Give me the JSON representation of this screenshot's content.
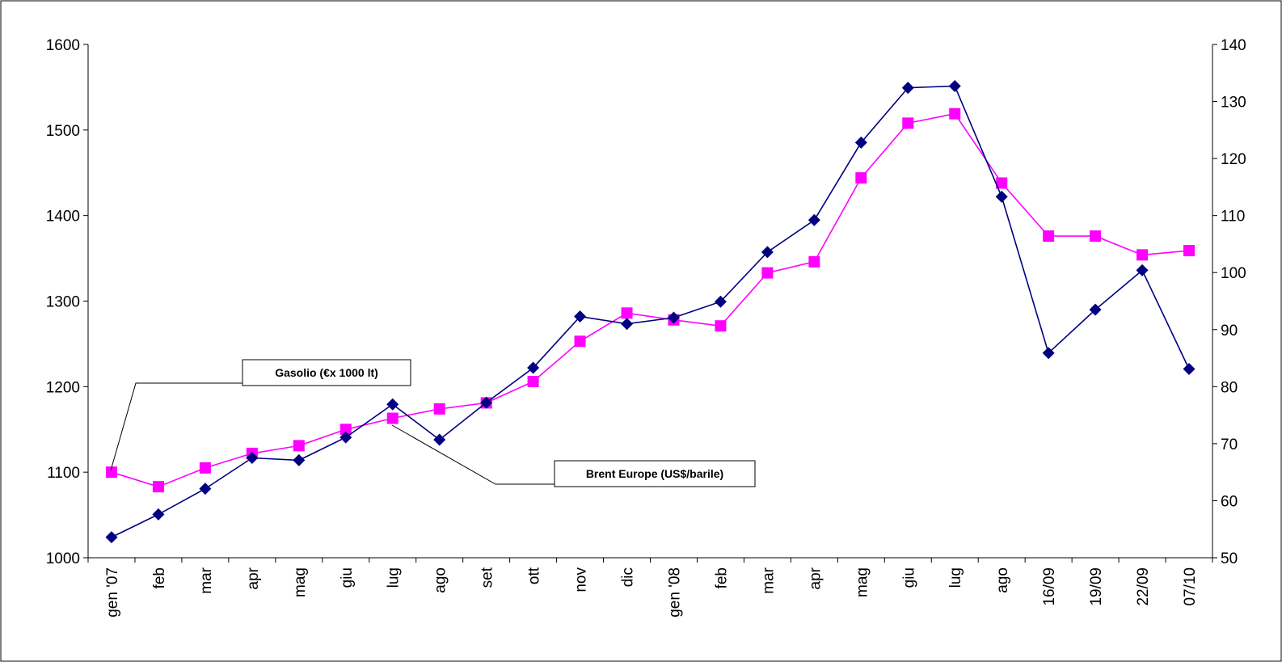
{
  "chart_data": {
    "type": "line",
    "categories": [
      "gen '07",
      "feb",
      "mar",
      "apr",
      "mag",
      "giu",
      "lug",
      "ago",
      "set",
      "ott",
      "nov",
      "dic",
      "gen '08",
      "feb",
      "mar",
      "apr",
      "mag",
      "giu",
      "lug",
      "ago",
      "16/09",
      "19/09",
      "22/09",
      "07/10"
    ],
    "left_axis": {
      "min": 1000,
      "max": 1600,
      "step": 100,
      "ticks": [
        "1000",
        "1100",
        "1200",
        "1300",
        "1400",
        "1500",
        "1600"
      ]
    },
    "right_axis": {
      "min": 50,
      "max": 140,
      "step": 10,
      "ticks": [
        "50",
        "60",
        "70",
        "80",
        "90",
        "100",
        "110",
        "120",
        "130",
        "140"
      ]
    },
    "grid": false,
    "series": [
      {
        "name": "Gasolio (€x 1000 lt)",
        "axis": "left",
        "color": "#ff00ff",
        "marker": "square",
        "values": [
          1100,
          1083,
          1105,
          1122,
          1131,
          1150,
          1163,
          1174,
          1181,
          1206,
          1253,
          1286,
          1278,
          1271,
          1333,
          1346,
          1444,
          1508,
          1519,
          1438,
          1376,
          1376,
          1354,
          1359
        ]
      },
      {
        "name": "Brent Europe (US$/barile)",
        "axis": "right",
        "color": "#000080",
        "marker": "diamond",
        "values": [
          53.6,
          57.6,
          62.1,
          67.5,
          67.1,
          71.1,
          76.9,
          70.7,
          77.2,
          83.3,
          92.3,
          91.0,
          92.1,
          94.9,
          103.6,
          109.2,
          122.8,
          132.4,
          132.7,
          113.3,
          85.9,
          93.5,
          100.4,
          83.1
        ]
      }
    ],
    "annotations": [
      {
        "text": "Gasolio  (€x 1000 lt)",
        "series": 0
      },
      {
        "text": "Brent Europe (US$/barile)",
        "series": 1
      }
    ]
  }
}
